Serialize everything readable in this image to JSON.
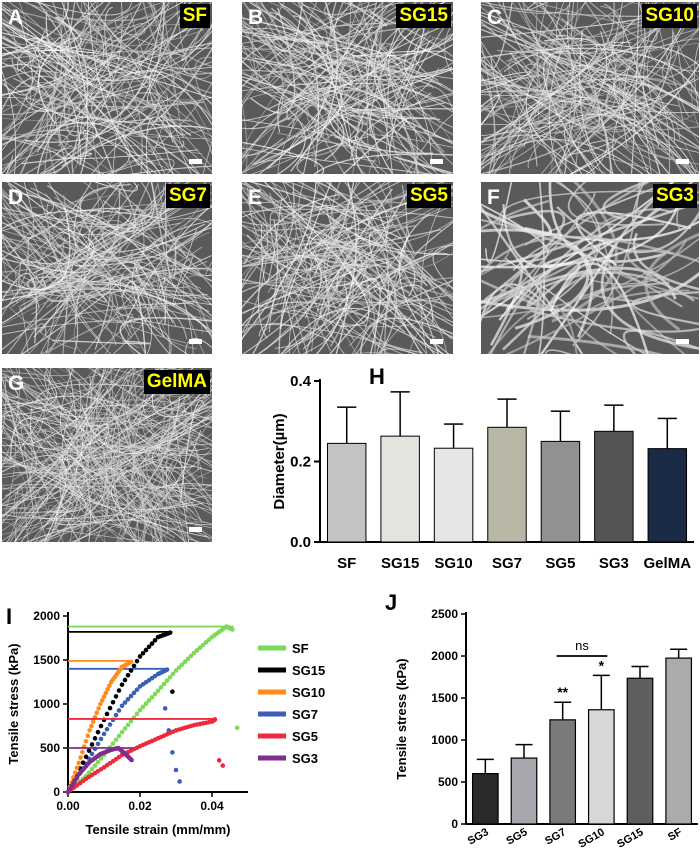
{
  "colors": {
    "SF": "#7ed957",
    "SG15": "#000000",
    "SG10": "#ff8c1a",
    "SG7": "#3a5fb8",
    "SG5": "#ee2a3a",
    "SG3": "#7e2e8c"
  },
  "sem_panels": [
    {
      "letter": "A",
      "tag": "SF"
    },
    {
      "letter": "B",
      "tag": "SG15"
    },
    {
      "letter": "C",
      "tag": "SG10"
    },
    {
      "letter": "D",
      "tag": "SG7"
    },
    {
      "letter": "E",
      "tag": "SG5"
    },
    {
      "letter": "F",
      "tag": "SG3"
    },
    {
      "letter": "G",
      "tag": "GelMA"
    }
  ],
  "panel_letters": {
    "H": "H",
    "I": "I",
    "J": "J"
  },
  "chart_data": [
    {
      "id": "H",
      "type": "bar",
      "ylabel": "Diameter(µm)",
      "ylim": [
        0,
        0.4
      ],
      "yticks": [
        "0.0",
        "0.2",
        "0.4"
      ],
      "categories": [
        "SF",
        "SG15",
        "SG10",
        "SG7",
        "SG5",
        "SG3",
        "GelMA"
      ],
      "values": [
        0.245,
        0.263,
        0.233,
        0.285,
        0.25,
        0.275,
        0.232
      ],
      "errors": [
        0.09,
        0.11,
        0.06,
        0.07,
        0.075,
        0.065,
        0.075
      ],
      "bar_colors": [
        "#c4c4c4",
        "#e4e4de",
        "#e6e6e6",
        "#b9b8a6",
        "#919191",
        "#545454",
        "#1b2a45"
      ]
    },
    {
      "id": "I",
      "type": "scatter",
      "xlabel": "Tensile strain (mm/mm)",
      "ylabel": "Tensile stress (kPa)",
      "xlim": [
        0,
        0.05
      ],
      "ylim": [
        0,
        2000
      ],
      "xticks": [
        "0.00",
        "0.02",
        "0.04"
      ],
      "yticks": [
        "0",
        "500",
        "1000",
        "1500",
        "2000"
      ],
      "legend": [
        "SF",
        "SG15",
        "SG10",
        "SG7",
        "SG5",
        "SG3"
      ],
      "series": [
        {
          "name": "SF",
          "x": [
            0,
            0.005,
            0.01,
            0.015,
            0.02,
            0.025,
            0.03,
            0.035,
            0.04,
            0.044,
            0.046
          ],
          "y": [
            0,
            180,
            420,
            680,
            930,
            1150,
            1380,
            1580,
            1760,
            1880,
            1840
          ],
          "tail_x": [
            0.047
          ],
          "tail_y": [
            730
          ],
          "plateau": 1880
        },
        {
          "name": "SG15",
          "x": [
            0,
            0.005,
            0.01,
            0.015,
            0.02,
            0.025,
            0.029
          ],
          "y": [
            0,
            400,
            820,
            1220,
            1540,
            1760,
            1820
          ],
          "tail_x": [
            0.029
          ],
          "tail_y": [
            1140
          ],
          "plateau": 1820
        },
        {
          "name": "SG10",
          "x": [
            0,
            0.003,
            0.006,
            0.009,
            0.012,
            0.015,
            0.018
          ],
          "y": [
            0,
            330,
            700,
            1000,
            1250,
            1420,
            1490
          ],
          "tail_x": [],
          "tail_y": [],
          "plateau": 1490
        },
        {
          "name": "SG7",
          "x": [
            0,
            0.005,
            0.01,
            0.015,
            0.02,
            0.025,
            0.028
          ],
          "y": [
            0,
            320,
            660,
            980,
            1200,
            1340,
            1400
          ],
          "tail_x": [
            0.027,
            0.028,
            0.029,
            0.03,
            0.031
          ],
          "tail_y": [
            950,
            700,
            450,
            250,
            120
          ],
          "plateau": 1400
        },
        {
          "name": "SG5",
          "x": [
            0,
            0.005,
            0.01,
            0.015,
            0.02,
            0.025,
            0.03,
            0.035,
            0.04,
            0.041
          ],
          "y": [
            0,
            150,
            280,
            420,
            520,
            610,
            700,
            760,
            800,
            830
          ],
          "tail_x": [
            0.042,
            0.043
          ],
          "tail_y": [
            360,
            300
          ],
          "plateau": 830
        },
        {
          "name": "SG3",
          "x": [
            0,
            0.003,
            0.006,
            0.009,
            0.012,
            0.014,
            0.016,
            0.018
          ],
          "y": [
            0,
            200,
            340,
            430,
            480,
            500,
            430,
            350
          ],
          "tail_x": [],
          "tail_y": [],
          "plateau": 500
        }
      ]
    },
    {
      "id": "J",
      "type": "bar",
      "ylabel": "Tensile stress (kPa)",
      "ylim": [
        0,
        2500
      ],
      "yticks": [
        "0",
        "500",
        "1000",
        "1500",
        "2000",
        "2500"
      ],
      "categories": [
        "SG3",
        "SG5",
        "SG7",
        "SG10",
        "SG15",
        "SF"
      ],
      "values": [
        600,
        785,
        1240,
        1360,
        1735,
        1975
      ],
      "errors": [
        170,
        160,
        210,
        410,
        140,
        105
      ],
      "bar_colors": [
        "#2a2a2a",
        "#a6a6ad",
        "#7a7a7a",
        "#d7d7d7",
        "#5e5e5e",
        "#ababab"
      ],
      "annotations": {
        "SG7": "**",
        "SG10": "*",
        "bracket": "ns"
      }
    }
  ]
}
